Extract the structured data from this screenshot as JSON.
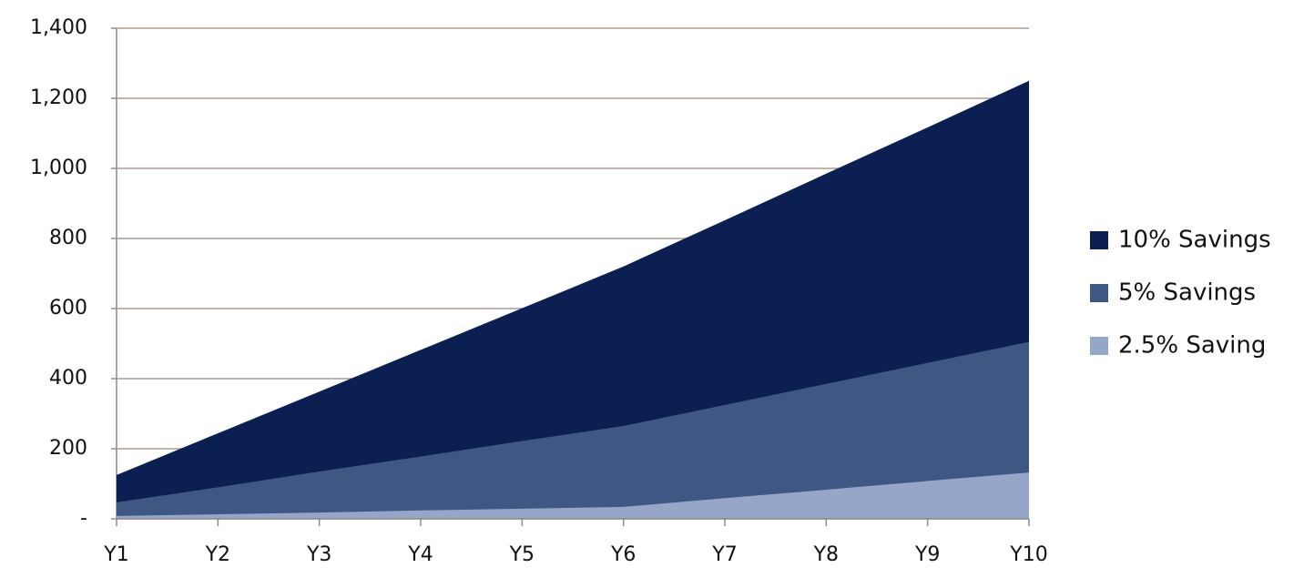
{
  "chart_data": {
    "type": "area",
    "categories": [
      "Y1",
      "Y2",
      "Y3",
      "Y4",
      "Y5",
      "Y6",
      "Y7",
      "Y8",
      "Y9",
      "Y10"
    ],
    "series": [
      {
        "name": "10% Savings",
        "color": "#0b1f52",
        "values": [
          125,
          244,
          363,
          482,
          601,
          720,
          852,
          985,
          1117,
          1250
        ]
      },
      {
        "name": "5% Savings",
        "color": "#3f5783",
        "values": [
          47,
          90,
          135,
          178,
          222,
          265,
          325,
          385,
          445,
          505
        ]
      },
      {
        "name": "2.5% Saving",
        "color": "#95a6c8",
        "values": [
          8,
          13,
          18,
          24,
          29,
          34,
          59,
          83,
          108,
          132
        ]
      }
    ],
    "ylim": [
      0,
      1400
    ],
    "yticks": [
      {
        "value": 0,
        "label": "-"
      },
      200,
      400,
      600,
      800,
      {
        "value": 1000,
        "label": "1,000"
      },
      {
        "value": 1200,
        "label": "1,200"
      },
      {
        "value": 1400,
        "label": "1,400"
      }
    ],
    "grid": true,
    "legend": "right"
  }
}
